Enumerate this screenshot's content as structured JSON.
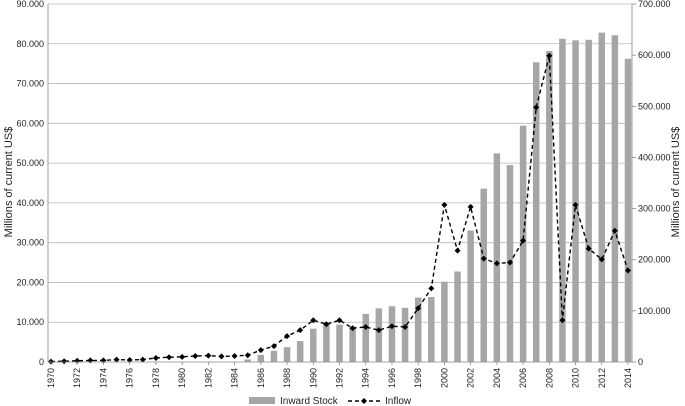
{
  "chart_data": {
    "type": "bar",
    "x": [
      1970,
      1971,
      1972,
      1973,
      1974,
      1975,
      1976,
      1977,
      1978,
      1979,
      1980,
      1981,
      1982,
      1983,
      1984,
      1985,
      1986,
      1987,
      1988,
      1989,
      1990,
      1991,
      1992,
      1993,
      1994,
      1995,
      1996,
      1997,
      1998,
      1999,
      2000,
      2001,
      2002,
      2003,
      2004,
      2005,
      2006,
      2007,
      2008,
      2009,
      2010,
      2011,
      2012,
      2013,
      2014
    ],
    "x_tick_labels": [
      "1970",
      "1972",
      "1974",
      "1976",
      "1978",
      "1980",
      "1982",
      "1984",
      "1986",
      "1988",
      "1990",
      "1992",
      "1994",
      "1996",
      "1998",
      "2000",
      "2002",
      "2004",
      "2006",
      "2008",
      "2010",
      "2012",
      "2014"
    ],
    "left_axis": {
      "label": "Millions of current US$",
      "ylim": [
        0,
        90000
      ],
      "ticks": [
        "0",
        "10.000",
        "20.000",
        "30.000",
        "40.000",
        "50.000",
        "60.000",
        "70.000",
        "80.000",
        "90.000"
      ]
    },
    "right_axis": {
      "label": "Millions of current US$",
      "ylim": [
        0,
        700000
      ],
      "ticks": [
        "0",
        "100.000",
        "200.000",
        "300.000",
        "400.000",
        "500.000",
        "600.000",
        "700.000"
      ]
    },
    "series": [
      {
        "name": "Inward Stock",
        "type": "bar",
        "axis": "right",
        "color": "#a6a6a6",
        "values": [
          0,
          0,
          0,
          0,
          0,
          0,
          0,
          0,
          0,
          0,
          0,
          0,
          0,
          0,
          0,
          5000,
          14000,
          22000,
          29000,
          41000,
          65000,
          76000,
          73000,
          69000,
          94000,
          105000,
          109000,
          106000,
          126000,
          127000,
          157000,
          177000,
          257000,
          339000,
          408000,
          385000,
          462000,
          586000,
          608000,
          632000,
          629000,
          630000,
          644000,
          639000,
          593000
        ]
      },
      {
        "name": "Inflow",
        "type": "line",
        "axis": "left",
        "color": "#000000",
        "line_style": "dashed",
        "marker": "diamond",
        "values": [
          100,
          200,
          300,
          400,
          400,
          600,
          500,
          600,
          1000,
          1200,
          1300,
          1500,
          1600,
          1400,
          1500,
          1700,
          3000,
          4000,
          6500,
          8000,
          10500,
          9500,
          10500,
          8500,
          8800,
          8000,
          9000,
          8800,
          13500,
          18500,
          39500,
          28000,
          39000,
          26000,
          24800,
          25000,
          30500,
          64000,
          77000,
          10500,
          39500,
          28500,
          25800,
          33000,
          23000
        ]
      }
    ],
    "legend_position": "bottom",
    "grid": true
  }
}
